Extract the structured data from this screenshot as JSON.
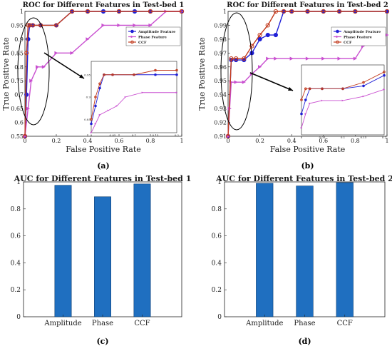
{
  "chart_data": [
    {
      "type": "line",
      "title": "ROC for Different Features in Test-bed 1",
      "xlabel": "False Positive Rate",
      "ylabel": "True Positive Rate",
      "xlim": [
        0,
        1
      ],
      "ylim": [
        0.55,
        1
      ],
      "xticks": [
        "0",
        "0.2",
        "0.4",
        "0.6",
        "0.8",
        "1"
      ],
      "yticks": [
        "0.55",
        "0.6",
        "0.65",
        "0.7",
        "0.75",
        "0.8",
        "0.85",
        "0.9",
        "0.95",
        "1"
      ],
      "legend": "top-right",
      "caption": "(a)",
      "series": [
        {
          "name": "Amplitude Feature",
          "color": "#1f1fd6",
          "x": [
            0,
            0.01,
            0.02,
            0.03,
            0.05,
            0.1,
            0.2,
            0.3,
            0.4,
            0.5,
            0.6,
            0.7,
            0.8,
            1
          ],
          "y": [
            0.55,
            0.7,
            0.9,
            0.95,
            0.95,
            0.95,
            0.95,
            1,
            1,
            1,
            1,
            1,
            1,
            1
          ]
        },
        {
          "name": "Phase Feature",
          "color": "#c94fd0",
          "x": [
            0,
            0.02,
            0.04,
            0.08,
            0.12,
            0.2,
            0.3,
            0.4,
            0.5,
            0.6,
            0.7,
            0.8,
            0.9,
            1
          ],
          "y": [
            0.55,
            0.65,
            0.75,
            0.8,
            0.8,
            0.85,
            0.85,
            0.9,
            0.95,
            0.95,
            0.95,
            0.95,
            1,
            1
          ]
        },
        {
          "name": "CCF",
          "color": "#c23a1d",
          "x": [
            0,
            0.01,
            0.02,
            0.03,
            0.05,
            0.1,
            0.2,
            0.3,
            0.4,
            0.6,
            0.8,
            1
          ],
          "y": [
            0.55,
            0.85,
            0.95,
            0.95,
            0.95,
            0.95,
            0.95,
            1,
            1,
            1,
            1,
            1
          ]
        }
      ],
      "inset": {
        "xticks": [
          "0",
          "0.05",
          "0.1",
          "0.15",
          "0.2"
        ],
        "yticks": [
          "0.85",
          "0.9",
          "0.95"
        ],
        "xlim": [
          0,
          0.2
        ],
        "ylim": [
          0.82,
          0.98
        ],
        "series": [
          {
            "color": "#1f1fd6",
            "x": [
              0,
              0.01,
              0.02,
              0.03,
              0.05,
              0.1,
              0.15,
              0.2
            ],
            "y": [
              0.84,
              0.88,
              0.92,
              0.95,
              0.95,
              0.95,
              0.95,
              0.95
            ]
          },
          {
            "color": "#c94fd0",
            "x": [
              0,
              0.01,
              0.02,
              0.04,
              0.06,
              0.08,
              0.12,
              0.2
            ],
            "y": [
              0.82,
              0.84,
              0.86,
              0.87,
              0.88,
              0.9,
              0.91,
              0.91
            ]
          },
          {
            "color": "#c23a1d",
            "x": [
              0,
              0.01,
              0.02,
              0.03,
              0.05,
              0.1,
              0.15,
              0.2
            ],
            "y": [
              0.85,
              0.9,
              0.93,
              0.95,
              0.95,
              0.95,
              0.96,
              0.96
            ]
          }
        ]
      }
    },
    {
      "type": "line",
      "title": "ROC for Different Features in Test-bed 2",
      "xlabel": "False Positive Rate",
      "ylabel": "True Positive Rate",
      "xlim": [
        0,
        1
      ],
      "ylim": [
        0.91,
        1
      ],
      "xticks": [
        "0",
        "0.2",
        "0.4",
        "0.6",
        "0.8",
        "1"
      ],
      "yticks": [
        "0.91",
        "0.92",
        "0.93",
        "0.94",
        "0.95",
        "0.96",
        "0.97",
        "0.98",
        "0.99",
        "1"
      ],
      "legend": "top-right",
      "caption": "(b)",
      "series": [
        {
          "name": "Amplitude Feature",
          "color": "#1f1fd6",
          "x": [
            0,
            0.02,
            0.05,
            0.1,
            0.15,
            0.2,
            0.25,
            0.3,
            0.35,
            0.4,
            0.5,
            0.6,
            0.7,
            0.8,
            1
          ],
          "y": [
            0.91,
            0.965,
            0.965,
            0.965,
            0.97,
            0.98,
            0.983,
            0.983,
            1,
            1,
            1,
            1,
            1,
            1,
            1
          ]
        },
        {
          "name": "Phase Feature",
          "color": "#c94fd0",
          "x": [
            0,
            0.01,
            0.02,
            0.05,
            0.1,
            0.15,
            0.2,
            0.25,
            0.3,
            0.4,
            0.5,
            0.6,
            0.7,
            0.8,
            0.85,
            0.9,
            1
          ],
          "y": [
            0.91,
            0.93,
            0.949,
            0.949,
            0.949,
            0.955,
            0.96,
            0.966,
            0.966,
            0.966,
            0.966,
            0.966,
            0.966,
            0.966,
            0.975,
            0.983,
            0.983
          ]
        },
        {
          "name": "CCF",
          "color": "#c23a1d",
          "x": [
            0,
            0.02,
            0.05,
            0.1,
            0.15,
            0.2,
            0.25,
            0.3,
            0.35,
            0.4,
            0.5,
            0.6,
            0.7,
            0.8,
            1
          ],
          "y": [
            0.91,
            0.966,
            0.966,
            0.966,
            0.975,
            0.983,
            0.99,
            1,
            1,
            1,
            1,
            1,
            1,
            1,
            1
          ]
        }
      ],
      "inset": {
        "xticks": [
          "0",
          "0.05",
          "0.1",
          "0.15",
          "0.2"
        ],
        "yticks": [],
        "xlim": [
          0,
          0.2
        ],
        "ylim": [
          0.9,
          1
        ],
        "series": [
          {
            "color": "#1f1fd6",
            "x": [
              0,
              0.01,
              0.02,
              0.05,
              0.1,
              0.15,
              0.2
            ],
            "y": [
              0.93,
              0.95,
              0.966,
              0.966,
              0.966,
              0.97,
              0.985
            ]
          },
          {
            "color": "#c94fd0",
            "x": [
              0,
              0.01,
              0.02,
              0.05,
              0.1,
              0.15,
              0.2
            ],
            "y": [
              0.91,
              0.93,
              0.945,
              0.949,
              0.949,
              0.955,
              0.965
            ]
          },
          {
            "color": "#c23a1d",
            "x": [
              0,
              0.01,
              0.02,
              0.05,
              0.1,
              0.15,
              0.2
            ],
            "y": [
              0.95,
              0.966,
              0.966,
              0.966,
              0.966,
              0.975,
              0.99
            ]
          }
        ]
      }
    },
    {
      "type": "bar",
      "title": "AUC for Different Features in Test-bed 1",
      "categories": [
        "Amplitude",
        "Phase",
        "CCF"
      ],
      "values": [
        0.975,
        0.89,
        0.985
      ],
      "ylim": [
        0,
        1
      ],
      "yticks": [
        "0",
        "0.2",
        "0.4",
        "0.6",
        "0.8",
        "1"
      ],
      "color": "#1f6fc0",
      "caption": "(c)"
    },
    {
      "type": "bar",
      "title": "AUC for Different Features in Test-bed 2",
      "categories": [
        "Amplitude",
        "Phase",
        "CCF"
      ],
      "values": [
        0.99,
        0.97,
        0.995
      ],
      "ylim": [
        0,
        1
      ],
      "yticks": [
        "0",
        "0.2",
        "0.4",
        "0.6",
        "0.8",
        "1"
      ],
      "color": "#1f6fc0",
      "caption": "(d)"
    }
  ]
}
